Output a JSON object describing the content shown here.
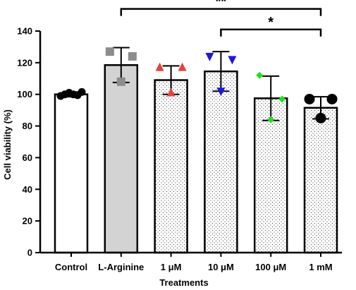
{
  "chart_data": {
    "type": "bar",
    "title": "",
    "xlabel": "Treatments",
    "ylabel": "Cell viability (%)",
    "ylim": [
      0,
      140
    ],
    "yticks": [
      0,
      20,
      40,
      60,
      80,
      100,
      120,
      140
    ],
    "categories": [
      "Control",
      "L-Arginine",
      "1 μM",
      "10 μM",
      "100 μM",
      "1 mM"
    ],
    "values": [
      100,
      118.5,
      109,
      114.5,
      97.5,
      91.5
    ],
    "error": [
      1.5,
      11,
      9,
      12.5,
      14,
      7
    ],
    "fill_colors": [
      "#ffffff",
      "#d3d3d3",
      "#ffffff",
      "#ffffff",
      "#ffffff",
      "#ffffff"
    ],
    "fill_patterns": [
      "none",
      "none",
      "dots",
      "dots",
      "dots",
      "dots"
    ],
    "replicates": [
      {
        "marker": "circle",
        "color": "#000000",
        "values": [
          99,
          100,
          101,
          100,
          99.5,
          101.5
        ]
      },
      {
        "marker": "square",
        "color": "#8c8c8c",
        "values": [
          127,
          124,
          108
        ]
      },
      {
        "marker": "triangle-up",
        "color": "#e8413b",
        "values": [
          117,
          117,
          101
        ]
      },
      {
        "marker": "triangle-down",
        "color": "#1a1ad6",
        "values": [
          124,
          122,
          102
        ]
      },
      {
        "marker": "diamond",
        "color": "#22e022",
        "values": [
          112,
          97,
          84
        ]
      },
      {
        "marker": "circle",
        "color": "#000000",
        "values": [
          97,
          97,
          85
        ]
      }
    ],
    "significance": [
      {
        "from": 1,
        "to": 5,
        "label": "**",
        "y": 154
      },
      {
        "from": 3,
        "to": 5,
        "label": "*",
        "y": 141
      }
    ],
    "grid": false,
    "legend": "none"
  }
}
